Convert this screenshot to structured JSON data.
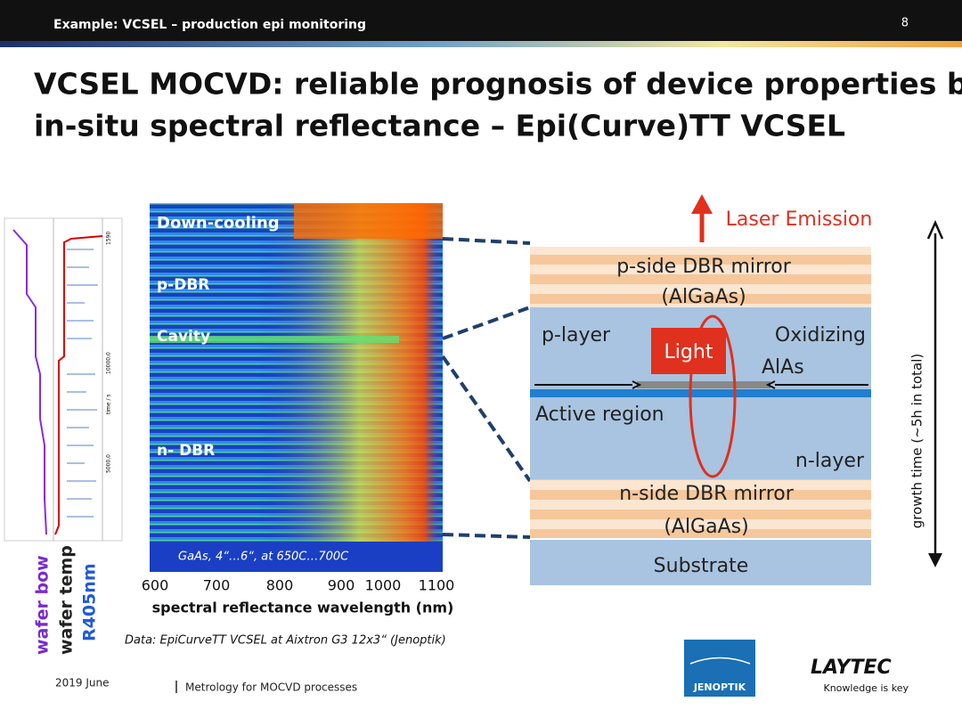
{
  "header": {
    "topic": "Example: VCSEL – production epi monitoring",
    "page": "8"
  },
  "title": [
    "VCSEL MOCVD: reliable prognosis of device properties by",
    "in-situ spectral reflectance – Epi(Curve)TT VCSEL"
  ],
  "left_plot": {
    "y_ticks": [
      "5000,0",
      "10000,0",
      "1590"
    ],
    "y_label": "time / s",
    "legend": [
      "wafer bow",
      "wafer temp",
      "R405nm"
    ]
  },
  "heatmap": {
    "labels": [
      "Down-cooling",
      "p-DBR",
      "Cavity",
      "n- DBR"
    ],
    "note": "GaAs, 4“…6“, at 650C…700C",
    "x_ticks": [
      600,
      700,
      800,
      900,
      1000,
      1100
    ],
    "x_label": "spectral reflectance wavelength (nm)"
  },
  "source": "Data: EpiCurveTT VCSEL at Aixtron G3 12x3“ (Jenoptik)",
  "diagram": {
    "laser": "Laser Emission",
    "p_dbr": [
      "p-side DBR mirror",
      "(AlGaAs)"
    ],
    "p_layer": "p-layer",
    "light": "Light",
    "oxidizing": [
      "Oxidizing",
      "AlAs"
    ],
    "active": "Active region",
    "n_layer": "n-layer",
    "n_dbr": [
      "n-side DBR mirror",
      "(AlGaAs)"
    ],
    "substrate": "Substrate"
  },
  "side_label": "growth time (~5h in total)",
  "footer": {
    "date": "2019 June",
    "subtitle": "Metrology for MOCVD processes",
    "logo_left": "JENOPTIK",
    "logo_right": "LAYTEC",
    "tagline": "Knowledge is key"
  }
}
